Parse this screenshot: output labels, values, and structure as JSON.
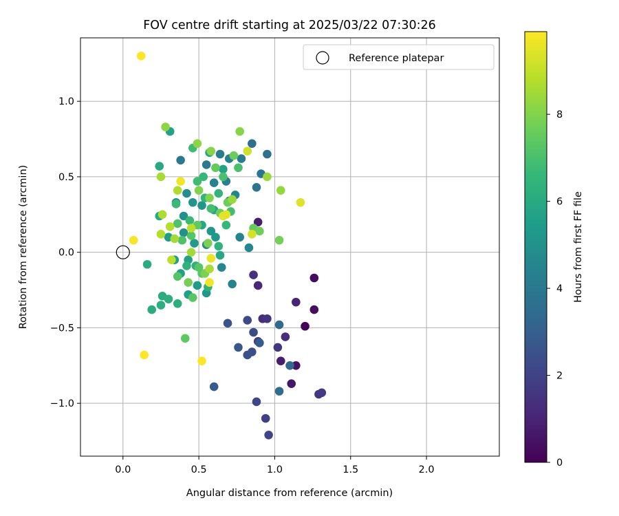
{
  "chart_data": {
    "type": "scatter",
    "title": "FOV centre drift starting at 2025/03/22 07:30:26",
    "xlabel": "Angular distance from reference (arcmin)",
    "ylabel": "Rotation from reference (arcmin)",
    "xlim": [
      -0.28,
      2.48
    ],
    "ylim": [
      -1.35,
      1.42
    ],
    "xticks": [
      0.0,
      0.5,
      1.0,
      1.5,
      2.0
    ],
    "xtick_labels": [
      "0.0",
      "0.5",
      "1.0",
      "1.5",
      "2.0"
    ],
    "yticks": [
      -1.0,
      -0.5,
      0.0,
      0.5,
      1.0
    ],
    "ytick_labels": [
      "−1.0",
      "−0.5",
      "0.0",
      "0.5",
      "1.0"
    ],
    "grid": true,
    "legend": {
      "placement": "top-right",
      "entries": [
        "Reference platepar"
      ]
    },
    "reference": {
      "x": 0.0,
      "y": 0.0
    },
    "colorbar": {
      "label": "Hours from first FF file",
      "range": [
        0,
        9.9
      ],
      "ticks": [
        0,
        2,
        4,
        6,
        8
      ],
      "colormap": "viridis"
    },
    "series": [
      {
        "points": [
          {
            "x": 1.2,
            "y": -0.49,
            "c": 0.1
          },
          {
            "x": 1.26,
            "y": -0.17,
            "c": 0.3
          },
          {
            "x": 1.26,
            "y": -0.38,
            "c": 0.4
          },
          {
            "x": 1.14,
            "y": -0.75,
            "c": 0.5
          },
          {
            "x": 1.11,
            "y": -0.87,
            "c": 0.6
          },
          {
            "x": 1.04,
            "y": -0.72,
            "c": 0.8
          },
          {
            "x": 0.89,
            "y": 0.2,
            "c": 0.8
          },
          {
            "x": 1.14,
            "y": -0.33,
            "c": 1.0
          },
          {
            "x": 0.89,
            "y": -0.22,
            "c": 1.1
          },
          {
            "x": 0.92,
            "y": -0.44,
            "c": 1.3
          },
          {
            "x": 1.07,
            "y": -0.56,
            "c": 1.3
          },
          {
            "x": 0.86,
            "y": -0.15,
            "c": 1.4
          },
          {
            "x": 0.95,
            "y": -0.44,
            "c": 1.5
          },
          {
            "x": 1.02,
            "y": -0.63,
            "c": 1.6
          },
          {
            "x": 1.29,
            "y": -0.94,
            "c": 1.6
          },
          {
            "x": 1.31,
            "y": -0.93,
            "c": 1.7
          },
          {
            "x": 0.89,
            "y": -0.59,
            "c": 1.8
          },
          {
            "x": 0.94,
            "y": -1.1,
            "c": 1.9
          },
          {
            "x": 0.96,
            "y": -1.21,
            "c": 2.0
          },
          {
            "x": 0.88,
            "y": -0.99,
            "c": 2.1
          },
          {
            "x": 0.82,
            "y": -0.45,
            "c": 2.2
          },
          {
            "x": 0.86,
            "y": -0.53,
            "c": 2.3
          },
          {
            "x": 0.85,
            "y": -0.66,
            "c": 2.4
          },
          {
            "x": 0.82,
            "y": -0.68,
            "c": 2.5
          },
          {
            "x": 0.69,
            "y": -0.47,
            "c": 2.6
          },
          {
            "x": 0.76,
            "y": -0.63,
            "c": 2.7
          },
          {
            "x": 0.6,
            "y": -0.89,
            "c": 2.8
          },
          {
            "x": 0.9,
            "y": -0.6,
            "c": 2.9
          },
          {
            "x": 1.1,
            "y": -0.75,
            "c": 3.3
          },
          {
            "x": 1.03,
            "y": -0.48,
            "c": 3.4
          },
          {
            "x": 1.03,
            "y": -0.92,
            "c": 3.5
          },
          {
            "x": 0.85,
            "y": 0.72,
            "c": 3.6
          },
          {
            "x": 0.95,
            "y": 0.65,
            "c": 3.7
          },
          {
            "x": 0.88,
            "y": 0.43,
            "c": 3.8
          },
          {
            "x": 0.91,
            "y": 0.52,
            "c": 3.9
          },
          {
            "x": 0.38,
            "y": 0.61,
            "c": 4.0
          },
          {
            "x": 0.55,
            "y": 0.58,
            "c": 4.0
          },
          {
            "x": 0.64,
            "y": 0.65,
            "c": 4.1
          },
          {
            "x": 0.7,
            "y": 0.62,
            "c": 4.2
          },
          {
            "x": 0.78,
            "y": 0.62,
            "c": 4.1
          },
          {
            "x": 0.68,
            "y": 0.47,
            "c": 4.3
          },
          {
            "x": 0.6,
            "y": 0.46,
            "c": 4.4
          },
          {
            "x": 0.74,
            "y": 0.38,
            "c": 4.5
          },
          {
            "x": 0.7,
            "y": 0.34,
            "c": 4.4
          },
          {
            "x": 0.83,
            "y": 0.03,
            "c": 4.6
          },
          {
            "x": 0.77,
            "y": 0.1,
            "c": 4.5
          },
          {
            "x": 0.72,
            "y": -0.21,
            "c": 4.4
          },
          {
            "x": 0.65,
            "y": -0.1,
            "c": 4.6
          },
          {
            "x": 0.55,
            "y": 0.05,
            "c": 4.7
          },
          {
            "x": 0.42,
            "y": 0.39,
            "c": 4.8
          },
          {
            "x": 0.35,
            "y": 0.33,
            "c": 4.9
          },
          {
            "x": 0.4,
            "y": 0.24,
            "c": 5.0
          },
          {
            "x": 0.4,
            "y": 0.13,
            "c": 5.0
          },
          {
            "x": 0.46,
            "y": 0.33,
            "c": 5.1
          },
          {
            "x": 0.52,
            "y": 0.31,
            "c": 5.2
          },
          {
            "x": 0.58,
            "y": 0.14,
            "c": 5.2
          },
          {
            "x": 0.61,
            "y": 0.1,
            "c": 5.3
          },
          {
            "x": 0.55,
            "y": -0.27,
            "c": 5.3
          },
          {
            "x": 0.49,
            "y": -0.22,
            "c": 5.4
          },
          {
            "x": 0.47,
            "y": 0.06,
            "c": 5.4
          },
          {
            "x": 0.34,
            "y": -0.05,
            "c": 5.5
          },
          {
            "x": 0.3,
            "y": 0.1,
            "c": 5.5
          },
          {
            "x": 0.43,
            "y": -0.28,
            "c": 5.6
          },
          {
            "x": 0.43,
            "y": -0.05,
            "c": 5.6
          },
          {
            "x": 0.38,
            "y": -0.14,
            "c": 5.6
          },
          {
            "x": 0.31,
            "y": 0.8,
            "c": 5.7
          },
          {
            "x": 0.66,
            "y": 0.55,
            "c": 5.7
          },
          {
            "x": 0.57,
            "y": 0.66,
            "c": 5.8
          },
          {
            "x": 0.6,
            "y": 0.28,
            "c": 5.8
          },
          {
            "x": 0.64,
            "y": -0.02,
            "c": 5.9
          },
          {
            "x": 0.52,
            "y": 0.18,
            "c": 5.9
          },
          {
            "x": 0.24,
            "y": 0.24,
            "c": 6.0
          },
          {
            "x": 0.24,
            "y": 0.57,
            "c": 6.0
          },
          {
            "x": 0.19,
            "y": -0.38,
            "c": 6.1
          },
          {
            "x": 0.16,
            "y": -0.08,
            "c": 6.1
          },
          {
            "x": 0.26,
            "y": -0.29,
            "c": 6.1
          },
          {
            "x": 0.25,
            "y": -0.35,
            "c": 6.2
          },
          {
            "x": 0.3,
            "y": -0.31,
            "c": 6.2
          },
          {
            "x": 0.36,
            "y": -0.34,
            "c": 6.2
          },
          {
            "x": 0.56,
            "y": -0.23,
            "c": 6.3
          },
          {
            "x": 0.48,
            "y": -0.09,
            "c": 6.3
          },
          {
            "x": 0.42,
            "y": -0.09,
            "c": 6.4
          },
          {
            "x": 0.63,
            "y": 0.04,
            "c": 6.4
          },
          {
            "x": 0.54,
            "y": 0.36,
            "c": 6.5
          },
          {
            "x": 0.63,
            "y": 0.39,
            "c": 6.5
          },
          {
            "x": 0.53,
            "y": 0.5,
            "c": 6.6
          },
          {
            "x": 0.68,
            "y": 0.18,
            "c": 6.6
          },
          {
            "x": 0.44,
            "y": 0.21,
            "c": 6.7
          },
          {
            "x": 0.35,
            "y": 0.32,
            "c": 6.7
          },
          {
            "x": 0.49,
            "y": 0.47,
            "c": 6.8
          },
          {
            "x": 0.46,
            "y": 0.69,
            "c": 6.8
          },
          {
            "x": 0.71,
            "y": 0.27,
            "c": 6.9
          },
          {
            "x": 0.58,
            "y": 0.29,
            "c": 6.9
          },
          {
            "x": 0.76,
            "y": 0.56,
            "c": 7.0
          },
          {
            "x": 0.66,
            "y": 0.5,
            "c": 7.0
          },
          {
            "x": 0.36,
            "y": 0.19,
            "c": 7.1
          },
          {
            "x": 0.39,
            "y": 0.08,
            "c": 7.1
          },
          {
            "x": 0.45,
            "y": 0.11,
            "c": 7.2
          },
          {
            "x": 0.36,
            "y": -0.16,
            "c": 7.2
          },
          {
            "x": 0.5,
            "y": -0.1,
            "c": 7.3
          },
          {
            "x": 0.52,
            "y": -0.14,
            "c": 7.3
          },
          {
            "x": 0.46,
            "y": -0.3,
            "c": 7.3
          },
          {
            "x": 0.41,
            "y": -0.57,
            "c": 7.4
          },
          {
            "x": 0.49,
            "y": 0.18,
            "c": 7.4
          },
          {
            "x": 0.61,
            "y": 0.56,
            "c": 7.5
          },
          {
            "x": 0.86,
            "y": 0.16,
            "c": 7.5
          },
          {
            "x": 0.69,
            "y": 0.33,
            "c": 7.6
          },
          {
            "x": 0.73,
            "y": 0.64,
            "c": 7.6
          },
          {
            "x": 0.64,
            "y": 0.26,
            "c": 7.7
          },
          {
            "x": 0.9,
            "y": 0.14,
            "c": 7.7
          },
          {
            "x": 1.03,
            "y": 0.08,
            "c": 7.8
          },
          {
            "x": 0.43,
            "y": -0.2,
            "c": 7.8
          },
          {
            "x": 0.54,
            "y": -0.14,
            "c": 7.9
          },
          {
            "x": 0.56,
            "y": 0.06,
            "c": 7.9
          },
          {
            "x": 0.5,
            "y": 0.41,
            "c": 8.0
          },
          {
            "x": 0.57,
            "y": 0.36,
            "c": 8.0
          },
          {
            "x": 0.77,
            "y": 0.8,
            "c": 8.1
          },
          {
            "x": 0.58,
            "y": 0.67,
            "c": 8.1
          },
          {
            "x": 0.49,
            "y": 0.72,
            "c": 8.2
          },
          {
            "x": 0.28,
            "y": 0.83,
            "c": 8.2
          },
          {
            "x": 1.04,
            "y": 0.41,
            "c": 8.3
          },
          {
            "x": 0.95,
            "y": 0.5,
            "c": 8.4
          },
          {
            "x": 0.72,
            "y": 0.35,
            "c": 8.4
          },
          {
            "x": 0.34,
            "y": 0.09,
            "c": 8.5
          },
          {
            "x": 0.45,
            "y": 0.0,
            "c": 8.5
          },
          {
            "x": 0.57,
            "y": -0.11,
            "c": 8.6
          },
          {
            "x": 0.25,
            "y": 0.5,
            "c": 8.6
          },
          {
            "x": 0.36,
            "y": 0.41,
            "c": 8.7
          },
          {
            "x": 0.26,
            "y": 0.25,
            "c": 8.7
          },
          {
            "x": 0.31,
            "y": 0.17,
            "c": 8.8
          },
          {
            "x": 0.25,
            "y": 0.12,
            "c": 8.8
          },
          {
            "x": 0.32,
            "y": -0.05,
            "c": 8.9
          },
          {
            "x": 0.45,
            "y": 0.16,
            "c": 8.9
          },
          {
            "x": 0.82,
            "y": 0.67,
            "c": 9.2
          },
          {
            "x": 0.85,
            "y": 0.12,
            "c": 9.3
          },
          {
            "x": 1.17,
            "y": 0.33,
            "c": 9.4
          },
          {
            "x": 0.66,
            "y": 0.24,
            "c": 9.5
          },
          {
            "x": 0.68,
            "y": 0.25,
            "c": 9.5
          },
          {
            "x": 0.58,
            "y": -0.04,
            "c": 9.6
          },
          {
            "x": 0.57,
            "y": -0.2,
            "c": 9.7
          },
          {
            "x": 0.38,
            "y": 0.47,
            "c": 9.7
          },
          {
            "x": 0.07,
            "y": 0.08,
            "c": 9.8
          },
          {
            "x": 0.12,
            "y": 1.3,
            "c": 9.9
          },
          {
            "x": 0.14,
            "y": -0.68,
            "c": 9.9
          },
          {
            "x": 0.52,
            "y": -0.72,
            "c": 9.9
          }
        ]
      }
    ]
  }
}
